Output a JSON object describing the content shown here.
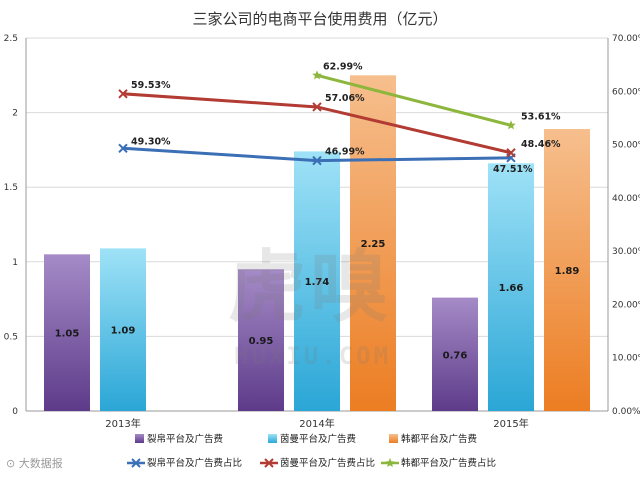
{
  "chart_data": {
    "type": "bar",
    "title": "三家公司的电商平台使用费用（亿元）",
    "categories": [
      "2013年",
      "2014年",
      "2015年"
    ],
    "bar_series": [
      {
        "name": "裂帛平台及广告费",
        "values": [
          1.05,
          0.95,
          0.76
        ],
        "labels": [
          "1.05",
          "0.95",
          "0.76"
        ],
        "color_top": "#a58bc7",
        "color_bottom": "#5e3b8a"
      },
      {
        "name": "茵曼平台及广告费",
        "values": [
          1.09,
          1.74,
          1.66
        ],
        "labels": [
          "1.09",
          "1.74",
          "1.66"
        ],
        "color_top": "#9fe2f7",
        "color_bottom": "#2aa6d6"
      },
      {
        "name": "韩都平台及广告费",
        "values": [
          null,
          2.25,
          1.89
        ],
        "labels": [
          "",
          "2.25",
          "1.89"
        ],
        "color_top": "#f6bf8e",
        "color_bottom": "#ec7d22"
      }
    ],
    "line_series": [
      {
        "name": "裂帛平台及广告费占比",
        "values": [
          49.3,
          46.99,
          47.51
        ],
        "labels": [
          "49.30%",
          "46.99%",
          "47.51%"
        ],
        "color": "#3b6fb6",
        "marker": "x"
      },
      {
        "name": "茵曼平台及广告费占比",
        "values": [
          59.53,
          57.06,
          48.46
        ],
        "labels": [
          "59.53%",
          "57.06%",
          "48.46%"
        ],
        "color": "#b23b33",
        "marker": "x"
      },
      {
        "name": "韩都平台及广告费占比",
        "values": [
          null,
          62.99,
          53.61
        ],
        "labels": [
          "",
          "62.99%",
          "53.61%"
        ],
        "color": "#8db63c",
        "marker": "star"
      }
    ],
    "y_left": {
      "min": 0,
      "max": 2.5,
      "ticks": [
        "0",
        "0.5",
        "1",
        "1.5",
        "2",
        "2.5"
      ]
    },
    "y_right": {
      "min": 0,
      "max": 70,
      "ticks": [
        "0.00%",
        "10.00%",
        "20.00%",
        "30.00%",
        "40.00%",
        "50.00%",
        "60.00%",
        "70.00%"
      ]
    },
    "grid": true,
    "legend_position": "bottom"
  },
  "watermark": {
    "main": "虎嗅",
    "sub": "HUXIU.COM"
  },
  "branding": {
    "text": "⊙ 大数据报"
  }
}
